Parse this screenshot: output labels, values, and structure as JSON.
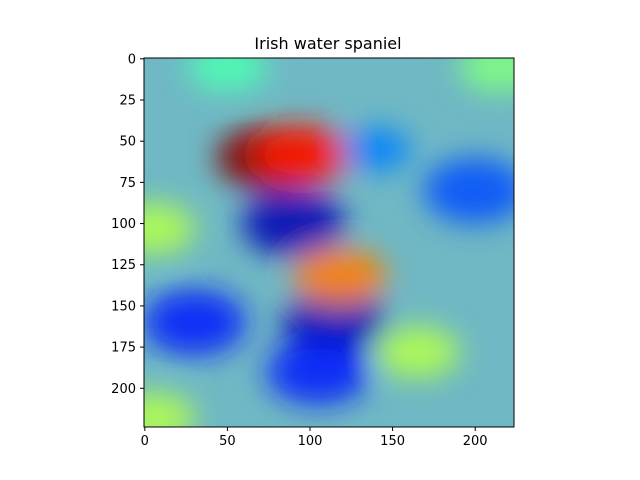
{
  "chart_data": {
    "type": "heatmap",
    "title": "Irish water spaniel",
    "xlabel": "",
    "ylabel": "",
    "image_size": [
      224,
      224
    ],
    "xlim": [
      -0.5,
      223.5
    ],
    "ylim": [
      223.5,
      -0.5
    ],
    "x_ticks": [
      0,
      50,
      100,
      150,
      200
    ],
    "y_ticks": [
      0,
      25,
      50,
      75,
      100,
      125,
      150,
      175,
      200
    ],
    "grid": false,
    "colormap": "jet",
    "overlay_alpha": 0.5,
    "hotspots": [
      {
        "x": 75,
        "y": 60,
        "level": 1.0
      },
      {
        "x": 95,
        "y": 58,
        "level": 0.85
      },
      {
        "x": 118,
        "y": 132,
        "level": 0.75
      },
      {
        "x": 165,
        "y": 178,
        "level": 0.55
      },
      {
        "x": 5,
        "y": 103,
        "level": 0.55
      },
      {
        "x": 5,
        "y": 218,
        "level": 0.55
      },
      {
        "x": 215,
        "y": 5,
        "level": 0.5
      },
      {
        "x": 50,
        "y": 5,
        "level": 0.45
      },
      {
        "x": 140,
        "y": 55,
        "level": 0.25
      }
    ],
    "coldspots": [
      {
        "x": 90,
        "y": 100,
        "level": 0.05
      },
      {
        "x": 115,
        "y": 160,
        "level": 0.05
      },
      {
        "x": 30,
        "y": 160,
        "level": 0.15
      },
      {
        "x": 105,
        "y": 190,
        "level": 0.15
      },
      {
        "x": 200,
        "y": 80,
        "level": 0.2
      }
    ]
  }
}
